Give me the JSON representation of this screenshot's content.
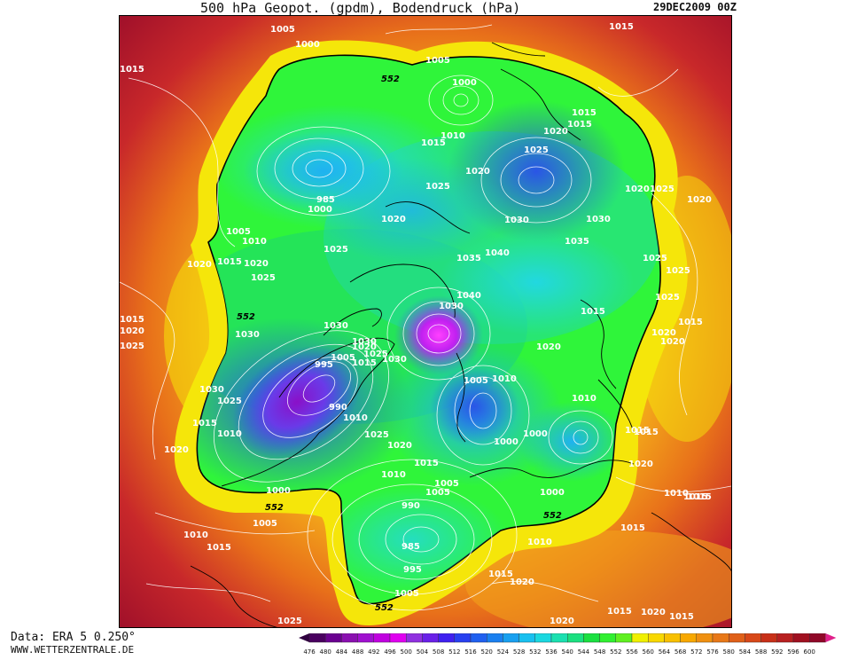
{
  "header": {
    "title": "500 hPa Geopot. (gpdm), Bodendruck (hPa)",
    "date": "29DEC2009 00Z"
  },
  "footer": {
    "source": "Data: ERA 5 0.250°",
    "site": "WWW.WETTERZENTRALE.DE"
  },
  "colors": {
    "deep_violet": "#6b1aa8",
    "purple": "#a020f0",
    "magenta": "#ff00ff",
    "blue": "#2a55e6",
    "light_blue": "#1fb2f0",
    "cyan": "#22d8e0",
    "green": "#22e060",
    "bright_green": "#2ff53a",
    "yellow": "#f5e60a",
    "orange": "#f2a21a",
    "dark_orange": "#e8701a",
    "red": "#c8282a",
    "dark_red": "#a0102a"
  },
  "legend": {
    "values": [
      "476",
      "480",
      "484",
      "488",
      "492",
      "496",
      "500",
      "504",
      "508",
      "512",
      "516",
      "520",
      "524",
      "528",
      "532",
      "536",
      "540",
      "544",
      "548",
      "552",
      "556",
      "560",
      "564",
      "568",
      "572",
      "576",
      "580",
      "584",
      "588",
      "592",
      "596",
      "600"
    ],
    "colors": [
      "#4a0060",
      "#6a0090",
      "#8a10b0",
      "#a010d0",
      "#c000e0",
      "#e000f0",
      "#9030e0",
      "#6a20e8",
      "#4020f0",
      "#2840f0",
      "#2060f0",
      "#1a80f0",
      "#18a0f0",
      "#18c0f0",
      "#1ad8e0",
      "#1ae0b0",
      "#1ae080",
      "#1ae040",
      "#30f030",
      "#60f020",
      "#f0f000",
      "#f8d800",
      "#f8c000",
      "#f8a800",
      "#f09010",
      "#e87818",
      "#e06018",
      "#d84818",
      "#c83018",
      "#b82020",
      "#a01020",
      "#900828"
    ]
  },
  "pressure_labels": [
    {
      "text": "1005",
      "x": 1003,
      "y": 35
    },
    {
      "text": "1000",
      "x": 1000,
      "y": 52
    },
    {
      "text": "1015",
      "x": 1015,
      "y": 80
    },
    {
      "text": "1005",
      "x": 1005,
      "y": 70
    },
    {
      "text": "1000",
      "x": 1000,
      "y": 92
    },
    {
      "text": "1015",
      "x": 1015,
      "y": 48
    },
    {
      "text": "1015",
      "x": 1015,
      "y": 125
    },
    {
      "text": "1010",
      "x": 1010,
      "y": 150
    },
    {
      "text": "1020",
      "x": 1020,
      "y": 145
    },
    {
      "text": "1025",
      "x": 1025,
      "y": 170
    },
    {
      "text": "1015",
      "x": 1015,
      "y": 160
    },
    {
      "text": "1020",
      "x": 1020,
      "y": 192
    },
    {
      "text": "1025",
      "x": 1025,
      "y": 207
    },
    {
      "text": "985",
      "x": 985,
      "y": 224
    },
    {
      "text": "1000",
      "x": 1000,
      "y": 235
    },
    {
      "text": "1020",
      "x": 1020,
      "y": 246
    },
    {
      "text": "1030",
      "x": 1030,
      "y": 236
    },
    {
      "text": "1030",
      "x": 1030,
      "y": 247
    },
    {
      "text": "1005",
      "x": 1005,
      "y": 260
    },
    {
      "text": "1010",
      "x": 1010,
      "y": 270
    },
    {
      "text": "1025",
      "x": 1025,
      "y": 278
    },
    {
      "text": "1035",
      "x": 1035,
      "y": 289
    },
    {
      "text": "1040",
      "x": 1040,
      "y": 282
    },
    {
      "text": "1035",
      "x": 1035,
      "y": 270
    },
    {
      "text": "1015",
      "x": 1015,
      "y": 292
    },
    {
      "text": "1020",
      "x": 1020,
      "y": 297
    },
    {
      "text": "1020",
      "x": 1020,
      "y": 296
    },
    {
      "text": "1025",
      "x": 1025,
      "y": 312
    },
    {
      "text": "1040",
      "x": 1040,
      "y": 331
    },
    {
      "text": "1030",
      "x": 1030,
      "y": 344
    },
    {
      "text": "1025",
      "x": 1025,
      "y": 340
    },
    {
      "text": "1030",
      "x": 1030,
      "y": 352
    },
    {
      "text": "1015",
      "x": 1015,
      "y": 359
    },
    {
      "text": "1020",
      "x": 1020,
      "y": 373
    },
    {
      "text": "1025",
      "x": 1025,
      "y": 387
    },
    {
      "text": "1030",
      "x": 1030,
      "y": 362
    },
    {
      "text": "1030",
      "x": 1030,
      "y": 376
    },
    {
      "text": "1020",
      "x": 1020,
      "y": 385
    },
    {
      "text": "1025",
      "x": 1025,
      "y": 395
    },
    {
      "text": "1005",
      "x": 1005,
      "y": 398
    },
    {
      "text": "1015",
      "x": 1015,
      "y": 407
    },
    {
      "text": "1030",
      "x": 1030,
      "y": 403
    },
    {
      "text": "995",
      "x": 995,
      "y": 410
    },
    {
      "text": "1020",
      "x": 1020,
      "y": 392
    },
    {
      "text": "1015",
      "x": 1015,
      "y": 348
    },
    {
      "text": "1030",
      "x": 1030,
      "y": 437
    },
    {
      "text": "1025",
      "x": 1025,
      "y": 448
    },
    {
      "text": "1005",
      "x": 1005,
      "y": 427
    },
    {
      "text": "1010",
      "x": 1010,
      "y": 426
    },
    {
      "text": "1010",
      "x": 1010,
      "y": 446
    },
    {
      "text": "990",
      "x": 990,
      "y": 456
    },
    {
      "text": "1010",
      "x": 1010,
      "y": 470
    },
    {
      "text": "1015",
      "x": 1015,
      "y": 476
    },
    {
      "text": "1010",
      "x": 1010,
      "y": 487
    },
    {
      "text": "1025",
      "x": 1025,
      "y": 489
    },
    {
      "text": "1020",
      "x": 1020,
      "y": 501
    },
    {
      "text": "1000",
      "x": 1000,
      "y": 497
    },
    {
      "text": "1000",
      "x": 1000,
      "y": 487
    },
    {
      "text": "1015",
      "x": 1015,
      "y": 484
    },
    {
      "text": "1020",
      "x": 1020,
      "y": 506
    },
    {
      "text": "1010",
      "x": 1010,
      "y": 534
    },
    {
      "text": "1015",
      "x": 1015,
      "y": 521
    },
    {
      "text": "1005",
      "x": 1005,
      "y": 534
    },
    {
      "text": "1005",
      "x": 1005,
      "y": 545
    },
    {
      "text": "1000",
      "x": 1000,
      "y": 552
    },
    {
      "text": "990",
      "x": 990,
      "y": 570
    },
    {
      "text": "1000",
      "x": 1000,
      "y": 553
    },
    {
      "text": "1010",
      "x": 1010,
      "y": 552
    },
    {
      "text": "1015",
      "x": 1015,
      "y": 556
    },
    {
      "text": "1005",
      "x": 1005,
      "y": 590
    },
    {
      "text": "1010",
      "x": 1010,
      "y": 603
    },
    {
      "text": "1015",
      "x": 1015,
      "y": 617
    },
    {
      "text": "1010",
      "x": 1010,
      "y": 610
    },
    {
      "text": "1015",
      "x": 1015,
      "y": 590
    },
    {
      "text": "985",
      "x": 985,
      "y": 614
    },
    {
      "text": "995",
      "x": 995,
      "y": 640
    },
    {
      "text": "1015",
      "x": 1015,
      "y": 646
    },
    {
      "text": "1020",
      "x": 1020,
      "y": 656
    },
    {
      "text": "1005",
      "x": 1005,
      "y": 667
    },
    {
      "text": "1015",
      "x": 1015,
      "y": 643
    },
    {
      "text": "1025",
      "x": 1025,
      "y": 698
    },
    {
      "text": "1020",
      "x": 1020,
      "y": 698
    },
    {
      "text": "1020",
      "x": 1020,
      "y": 690
    },
    {
      "text": "1015",
      "x": 1015,
      "y": 692
    },
    {
      "text": "1015",
      "x": 1015,
      "y": 161
    },
    {
      "text": "1020",
      "x": 1020,
      "y": 210
    },
    {
      "text": "1025",
      "x": 1025,
      "y": 210
    },
    {
      "text": "1025",
      "x": 1025,
      "y": 290
    },
    {
      "text": "1025",
      "x": 1025,
      "y": 340
    },
    {
      "text": "1020",
      "x": 1020,
      "y": 230
    },
    {
      "text": "1020",
      "x": 1020,
      "y": 372
    },
    {
      "text": "1020",
      "x": 1020,
      "y": 381
    },
    {
      "text": "1015",
      "x": 1015,
      "y": 359
    },
    {
      "text": "1015",
      "x": 1015,
      "y": 485
    },
    {
      "text": "1015",
      "x": 1015,
      "y": 556
    },
    {
      "text": "1020",
      "x": 1020,
      "y": 508
    }
  ],
  "geopot_labels": [
    {
      "text": "552"
    },
    {
      "text": "552"
    },
    {
      "text": "552"
    },
    {
      "text": "552"
    },
    {
      "text": "552"
    }
  ]
}
